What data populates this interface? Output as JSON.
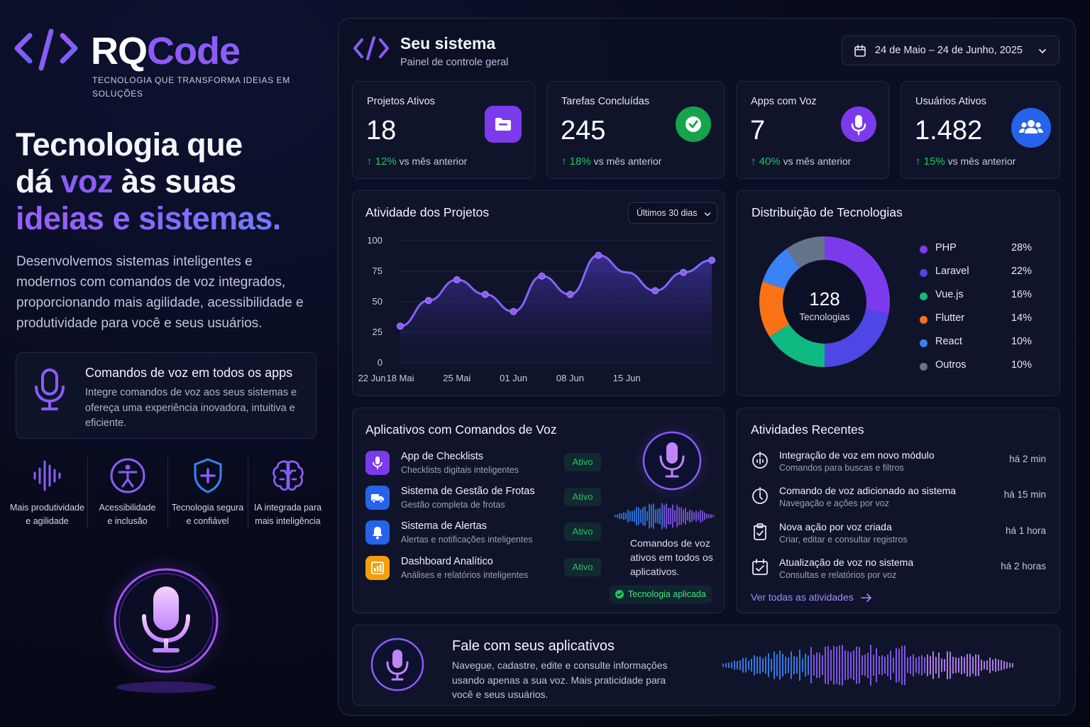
{
  "brand": {
    "name_part1": "RQ",
    "name_part2": "Code",
    "tagline": "TECNOLOGIA QUE TRANSFORMA IDEIAS EM SOLUÇÕES",
    "accent_color": "#8b5cf6"
  },
  "hero": {
    "line1": "Tecnologia que",
    "line2_a": "dá ",
    "line2_accent": "voz",
    "line2_b": " às suas",
    "line3": "ideias e sistemas.",
    "description": "Desenvolvemos sistemas inteligentes e modernos com comandos de voz integrados, proporcionando mais agilidade, acessibilidade e produtividade para você e seus usuários."
  },
  "voice_card": {
    "icon": "microphone-icon",
    "title": "Comandos de voz em todos os apps",
    "description": "Integre comandos de voz aos seus sistemas e ofereça uma experiência inovadora, intuitiva e eficiente."
  },
  "features": [
    {
      "icon": "waveform-icon",
      "label_1": "Mais produtividade",
      "label_2": "e agilidade"
    },
    {
      "icon": "accessibility-icon",
      "label_1": "Acessibilidade",
      "label_2": "e inclusão"
    },
    {
      "icon": "shield-plus-icon",
      "label_1": "Tecnologia segura",
      "label_2": "e confiável"
    },
    {
      "icon": "brain-icon",
      "label_1": "IA integrada para",
      "label_2": "mais inteligência"
    }
  ],
  "dashboard": {
    "title": "Seu sistema",
    "subtitle": "Painel de controle geral",
    "date_range": "24 de Maio  –  24 de Junho, 2025"
  },
  "stats": [
    {
      "label": "Projetos Ativos",
      "value": "18",
      "delta": "12%",
      "delta_text": "vs mês anterior",
      "icon": "folder-icon",
      "color": "#7c3aed"
    },
    {
      "label": "Tarefas Concluídas",
      "value": "245",
      "delta": "18%",
      "delta_text": "vs mês anterior",
      "icon": "check-circle-icon",
      "color": "#16a34a"
    },
    {
      "label": "Apps com Voz",
      "value": "7",
      "delta": "40%",
      "delta_text": "vs mês anterior",
      "icon": "microphone-icon",
      "color": "#7c3aed"
    },
    {
      "label": "Usuários Ativos",
      "value": "1.482",
      "delta": "15%",
      "delta_text": "vs mês anterior",
      "icon": "users-icon",
      "color": "#2563eb"
    }
  ],
  "activity": {
    "title": "Atividade dos Projetos",
    "filter": "Últimos 30 dias"
  },
  "chart_data": {
    "type": "area",
    "title": "Atividade dos Projetos",
    "xlabel": "",
    "ylabel": "",
    "ylim": [
      0,
      100
    ],
    "yticks": [
      "0",
      "25",
      "50",
      "75",
      "100"
    ],
    "xticks": [
      "18 Mai",
      "25 Mai",
      "01 Jun",
      "08 Jun",
      "15 Jun",
      "22 Jun"
    ],
    "x": [
      "18 Mai",
      "21 Mai",
      "25 Mai",
      "28 Mai",
      "01 Jun",
      "05 Jun",
      "08 Jun",
      "12 Jun",
      "15 Jun",
      "18 Jun",
      "21 Jun",
      "24 Jun"
    ],
    "values": [
      30,
      51,
      68,
      56,
      42,
      71,
      56,
      88,
      74,
      59,
      74,
      84
    ],
    "points_marked": [
      true,
      true,
      true,
      true,
      true,
      true,
      true,
      true,
      false,
      true,
      true,
      true
    ],
    "line_color": "#7c4dff"
  },
  "distribution": {
    "title": "Distribuição de Tecnologias",
    "center_value": "128",
    "center_label": "Tecnologias",
    "items": [
      {
        "name": "PHP",
        "pct": "28%",
        "value": 28,
        "color": "#7c3aed"
      },
      {
        "name": "Laravel",
        "pct": "22%",
        "value": 22,
        "color": "#4f46e5"
      },
      {
        "name": "Vue.js",
        "pct": "16%",
        "value": 16,
        "color": "#10b981"
      },
      {
        "name": "Flutter",
        "pct": "14%",
        "value": 14,
        "color": "#f97316"
      },
      {
        "name": "React",
        "pct": "10%",
        "value": 10,
        "color": "#3b82f6"
      },
      {
        "name": "Outros",
        "pct": "10%",
        "value": 10,
        "color": "#64748b"
      }
    ]
  },
  "apps": {
    "title": "Aplicativos com Comandos de Voz",
    "items": [
      {
        "name": "App de Checklists",
        "sub": "Checklists digitais inteligentes",
        "status": "Ativo",
        "icon": "microphone-icon",
        "color": "#7c3aed"
      },
      {
        "name": "Sistema de Gestão de Frotas",
        "sub": "Gestão completa de frotas",
        "status": "Ativo",
        "icon": "truck-icon",
        "color": "#2563eb"
      },
      {
        "name": "Sistema de Alertas",
        "sub": "Alertas e notificações inteligentes",
        "status": "Ativo",
        "icon": "bell-icon",
        "color": "#2563eb"
      },
      {
        "name": "Dashboard Analítico",
        "sub": "Análises e relatórios inteligentes",
        "status": "Ativo",
        "icon": "bar-chart-icon",
        "color": "#f59e0b"
      }
    ],
    "side_text": "Comandos de voz ativos em todos os aplicativos.",
    "badge": "Tecnologia aplicada"
  },
  "recent": {
    "title": "Atividades Recentes",
    "items": [
      {
        "name": "Integração de voz em novo módulo",
        "sub": "Comandos para buscas e filtros",
        "time": "há 2 min",
        "icon": "voice-integration-icon"
      },
      {
        "name": "Comando de voz adicionado ao sistema",
        "sub": "Navegação e ações por voz",
        "time": "há 15 min",
        "icon": "voice-command-icon"
      },
      {
        "name": "Nova ação por voz criada",
        "sub": "Criar, editar e consultar registros",
        "time": "há 1 hora",
        "icon": "clipboard-check-icon"
      },
      {
        "name": "Atualização de voz no sistema",
        "sub": "Consultas e relatórios por voz",
        "time": "há 2 horas",
        "icon": "calendar-check-icon"
      }
    ],
    "link": "Ver todas as atividades"
  },
  "talk": {
    "title": "Fale com seus aplicativos",
    "description": "Navegue, cadastre, edite e consulte informações usando apenas a sua voz. Mais praticidade para você e seus usuários."
  }
}
